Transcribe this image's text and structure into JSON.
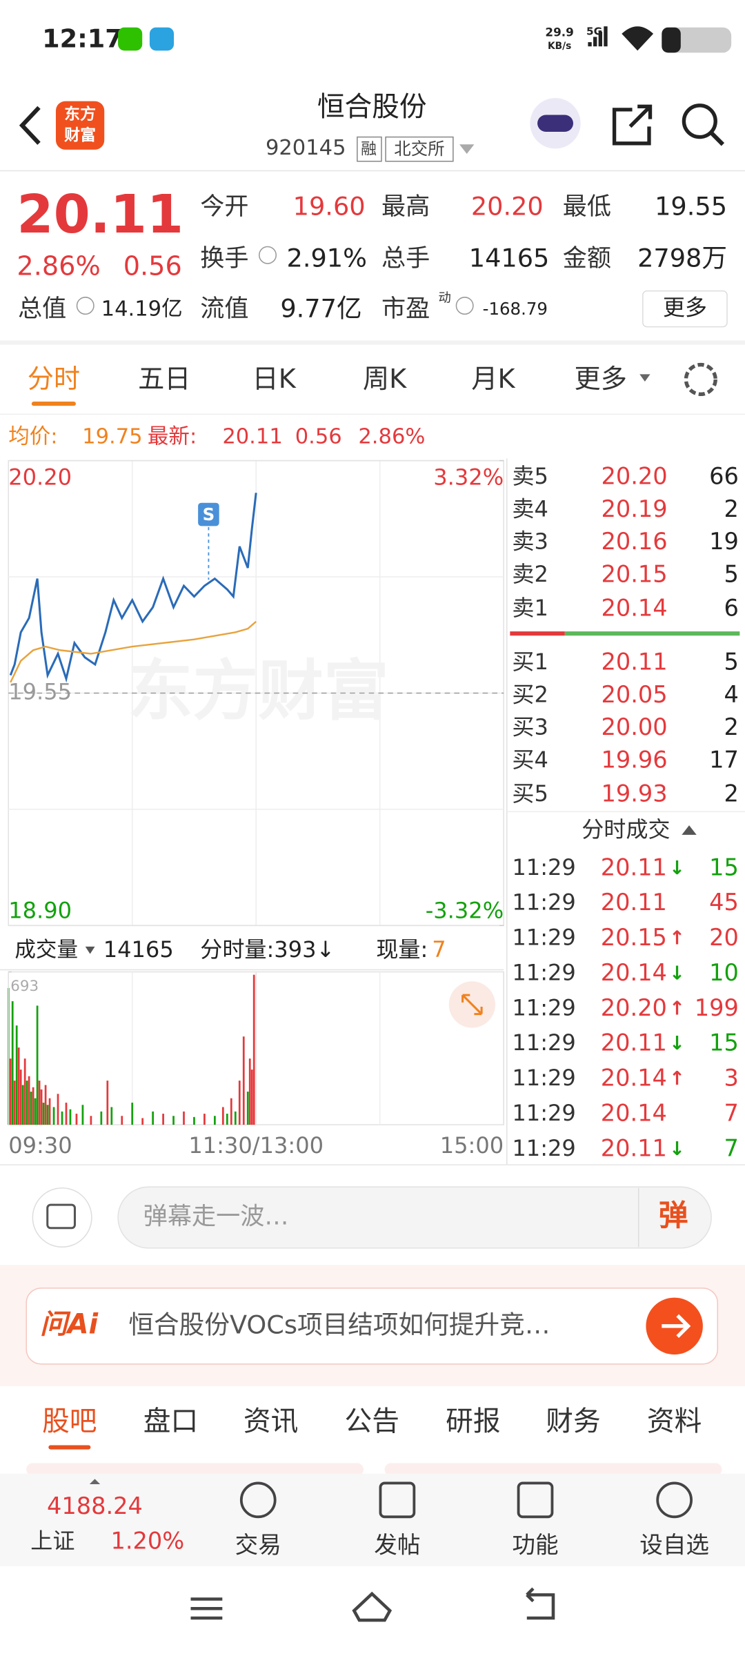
{
  "status": {
    "time": "12:17",
    "speed": "29.9",
    "speed_unit": "KB/s",
    "network": "5G"
  },
  "header": {
    "logo": [
      "东方",
      "财富"
    ],
    "title": "恒合股份",
    "code": "920145",
    "tags": [
      "融",
      "北交所"
    ]
  },
  "quote": {
    "price": "20.11",
    "change_pct": "2.86%",
    "change": "0.56",
    "fields": [
      {
        "label": "今开",
        "value": "19.60"
      },
      {
        "label": "最高",
        "value": "20.20"
      },
      {
        "label": "最低",
        "value": "19.55"
      },
      {
        "label": "换手",
        "value": "2.91%"
      },
      {
        "label": "总手",
        "value": "14165"
      },
      {
        "label": "金额",
        "value": "2798万"
      },
      {
        "label": "总值",
        "value": "14.19亿"
      },
      {
        "label": "流值",
        "value": "9.77亿"
      },
      {
        "label": "市盈",
        "sup": "动",
        "value": "-168.79"
      }
    ],
    "more": "更多"
  },
  "tabs": [
    "分时",
    "五日",
    "日K",
    "周K",
    "月K",
    "更多"
  ],
  "summary": {
    "avg_label": "均价:",
    "avg": "19.75",
    "latest_label": "最新:",
    "latest": "20.11",
    "change": "0.56",
    "change_pct": "2.86%"
  },
  "chart_data": [
    {
      "type": "line",
      "watermark": "东方财富",
      "xlim": [
        0,
        240
      ],
      "ylim": [
        18.9,
        20.2
      ],
      "yticks": [
        {
          "value": 20.2,
          "label": "20.20"
        },
        {
          "value": 19.55,
          "label": "19.55"
        },
        {
          "value": 18.9,
          "label": "18.90"
        }
      ],
      "y2lim": [
        -3.32,
        3.32
      ],
      "y2ticks": [
        {
          "value": 3.32,
          "label": "3.32%"
        },
        {
          "value": -3.32,
          "label": "-3.32%"
        }
      ],
      "annotation": {
        "label": "S",
        "x": 97
      },
      "series": [
        {
          "color": "#2a6bb8",
          "x": [
            1,
            3,
            6,
            10,
            14,
            16,
            19,
            24,
            28,
            32,
            37,
            42,
            47,
            51,
            55,
            60,
            65,
            70,
            75,
            80,
            85,
            90,
            95,
            100,
            106,
            109,
            112,
            116,
            118,
            120
          ],
          "values": [
            19.6,
            19.63,
            19.72,
            19.76,
            19.87,
            19.72,
            19.6,
            19.66,
            19.59,
            19.69,
            19.65,
            19.63,
            19.72,
            19.81,
            19.76,
            19.81,
            19.75,
            19.79,
            19.87,
            19.79,
            19.85,
            19.82,
            19.85,
            19.87,
            19.84,
            19.82,
            19.96,
            19.9,
            20.01,
            20.11
          ]
        },
        {
          "color": "#e8a33d",
          "x": [
            1,
            6,
            12,
            18,
            25,
            40,
            60,
            90,
            110,
            116,
            120
          ],
          "values": [
            19.58,
            19.64,
            19.67,
            19.68,
            19.67,
            19.66,
            19.68,
            19.7,
            19.72,
            19.73,
            19.75
          ]
        }
      ]
    },
    {
      "type": "bar",
      "header": {
        "label": "成交量",
        "total": "14165",
        "minute": "分时量:393↓",
        "current_label": "现量:",
        "current": "7"
      },
      "xlim": [
        0,
        240
      ],
      "ylim": [
        0,
        693
      ],
      "yticks": [
        693
      ],
      "xticks": [
        {
          "value": 0,
          "label": "09:30"
        },
        {
          "value": 120,
          "label": "11:30/13:00"
        },
        {
          "value": 240,
          "label": "15:00"
        }
      ],
      "series": [
        {
          "color": "#e4393c",
          "x": [
            1,
            3,
            5,
            6,
            8,
            10,
            12,
            15,
            16,
            18,
            20,
            24,
            28,
            33,
            40,
            48,
            55,
            65,
            75,
            85,
            95,
            104,
            108,
            112,
            114,
            117,
            118,
            119
          ],
          "values": [
            300,
            200,
            350,
            250,
            300,
            220,
            170,
            200,
            160,
            180,
            120,
            140,
            100,
            50,
            40,
            200,
            40,
            30,
            50,
            60,
            50,
            80,
            120,
            200,
            400,
            300,
            250,
            680
          ]
        },
        {
          "color": "#13a10e",
          "x": [
            0,
            2,
            4,
            7,
            9,
            11,
            13,
            14,
            17,
            19,
            22,
            26,
            30,
            36,
            45,
            50,
            60,
            70,
            80,
            90,
            100,
            106,
            110,
            116
          ],
          "values": [
            620,
            560,
            450,
            180,
            200,
            150,
            120,
            540,
            100,
            90,
            80,
            60,
            70,
            90,
            60,
            80,
            100,
            60,
            40,
            35,
            40,
            50,
            60,
            150
          ]
        }
      ]
    }
  ],
  "order_book": {
    "asks": [
      {
        "label": "卖5",
        "price": "20.20",
        "volume": "66"
      },
      {
        "label": "卖4",
        "price": "20.19",
        "volume": "2"
      },
      {
        "label": "卖3",
        "price": "20.16",
        "volume": "19"
      },
      {
        "label": "卖2",
        "price": "20.15",
        "volume": "5"
      },
      {
        "label": "卖1",
        "price": "20.14",
        "volume": "6"
      }
    ],
    "bids": [
      {
        "label": "买1",
        "price": "20.11",
        "volume": "5"
      },
      {
        "label": "买2",
        "price": "20.05",
        "volume": "4"
      },
      {
        "label": "买3",
        "price": "20.00",
        "volume": "2"
      },
      {
        "label": "买4",
        "price": "19.96",
        "volume": "17"
      },
      {
        "label": "买5",
        "price": "19.93",
        "volume": "2"
      }
    ]
  },
  "trades": {
    "title": "分时成交",
    "rows": [
      {
        "time": "11:29",
        "price": "20.11",
        "arrow": "↓",
        "volume": "15",
        "color": "#13a10e"
      },
      {
        "time": "11:29",
        "price": "20.11",
        "arrow": "",
        "volume": "45",
        "color": "#e4393c"
      },
      {
        "time": "11:29",
        "price": "20.15",
        "arrow": "↑",
        "volume": "20",
        "color": "#e4393c"
      },
      {
        "time": "11:29",
        "price": "20.14",
        "arrow": "↓",
        "volume": "10",
        "color": "#13a10e"
      },
      {
        "time": "11:29",
        "price": "20.20",
        "arrow": "↑",
        "volume": "199",
        "color": "#e4393c"
      },
      {
        "time": "11:29",
        "price": "20.11",
        "arrow": "↓",
        "volume": "15",
        "color": "#13a10e"
      },
      {
        "time": "11:29",
        "price": "20.14",
        "arrow": "↑",
        "volume": "3",
        "color": "#e4393c"
      },
      {
        "time": "11:29",
        "price": "20.14",
        "arrow": "",
        "volume": "7",
        "color": "#e4393c"
      },
      {
        "time": "11:29",
        "price": "20.11",
        "arrow": "↓",
        "volume": "7",
        "color": "#13a10e"
      }
    ]
  },
  "comment": {
    "placeholder": "弹幕走一波…",
    "button": "弹"
  },
  "ai": {
    "brand": "问Ai",
    "prompt": "恒合股份VOCs项目结项如何提升竞…"
  },
  "sections": [
    "股吧",
    "盘口",
    "资讯",
    "公告",
    "研报",
    "财务",
    "资料"
  ],
  "index": {
    "value": "4188.24",
    "name": "上证",
    "change": "1.20%"
  },
  "bottom_nav": [
    "交易",
    "发帖",
    "功能",
    "设自选"
  ]
}
